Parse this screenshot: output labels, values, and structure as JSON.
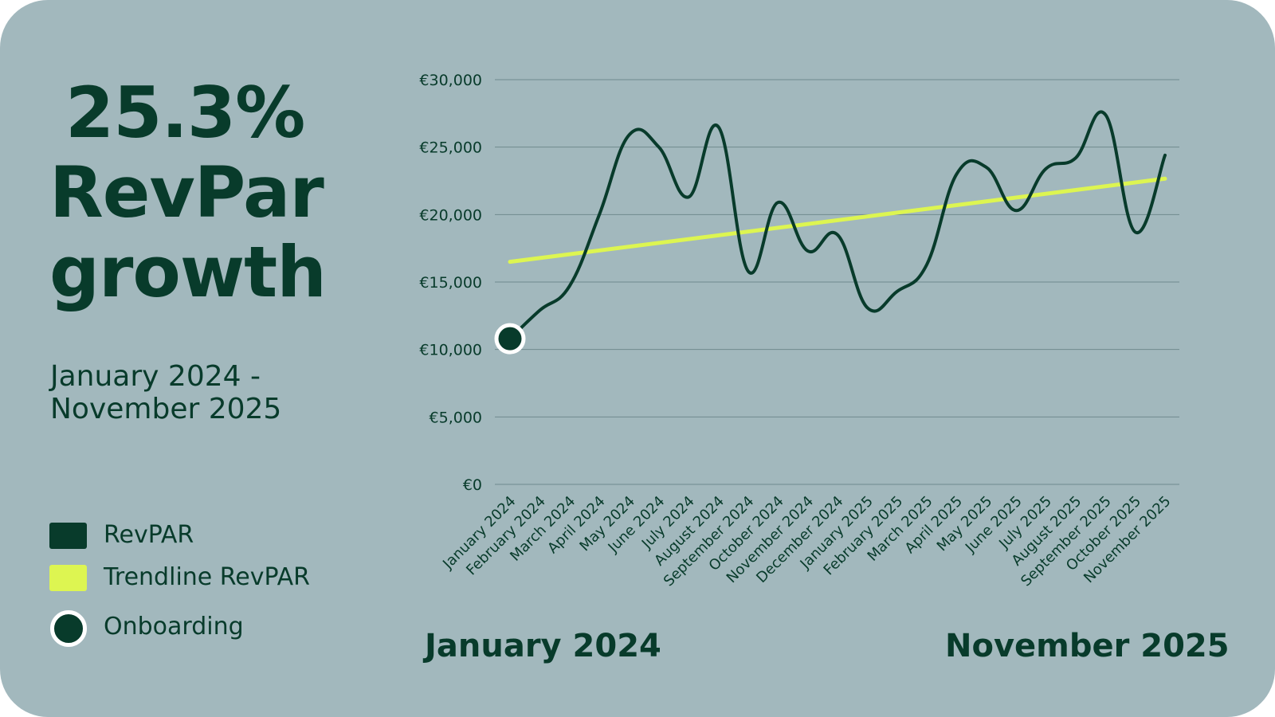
{
  "headline": {
    "percent": "25.3%",
    "line1": "RevPar",
    "line2": "growth"
  },
  "date_range": "January 2024 - November 2025",
  "legend": [
    {
      "label": "RevPAR",
      "color": "#083b2b",
      "shape": "square"
    },
    {
      "label": "Trendline RevPAR",
      "color": "#ddf551",
      "shape": "square"
    },
    {
      "label": "Onboarding",
      "color": "#083b2b",
      "shape": "circle"
    }
  ],
  "footer": {
    "start": "January 2024",
    "end": "November 2025"
  },
  "colors": {
    "background": "#a2b8bd",
    "revpar_line": "#083b2b",
    "trendline": "#ddf551",
    "gridline": "#6f8a8e",
    "marker_border": "#ffffff"
  },
  "chart_data": {
    "type": "line",
    "categories": [
      "January 2024",
      "February 2024",
      "March 2024",
      "April 2024",
      "May 2024",
      "June 2024",
      "July 2024",
      "August 2024",
      "September 2024",
      "October 2024",
      "November 2024",
      "December 2024",
      "January 2025",
      "February 2025",
      "March 2025",
      "April 2025",
      "May 2025",
      "June 2025",
      "July 2025",
      "August 2025",
      "September 2025",
      "October 2025",
      "November 2025"
    ],
    "series": [
      {
        "name": "RevPAR",
        "values": [
          10800,
          12900,
          14700,
          20000,
          25900,
          25000,
          21300,
          26500,
          15800,
          20900,
          17300,
          18500,
          13100,
          14300,
          16300,
          23000,
          23500,
          20300,
          23400,
          24200,
          27400,
          18700,
          24400
        ]
      },
      {
        "name": "Trendline RevPAR",
        "values": [
          16500,
          16780,
          17060,
          17340,
          17620,
          17900,
          18180,
          18460,
          18740,
          19020,
          19300,
          19580,
          19860,
          20140,
          20420,
          20700,
          20980,
          21260,
          21540,
          21820,
          22100,
          22380,
          22660
        ]
      }
    ],
    "onboarding_index": 0,
    "yticks": [
      "€0",
      "€5,000",
      "€10,000",
      "€15,000",
      "€20,000",
      "€25,000",
      "€30,000"
    ],
    "ylim": [
      0,
      30000
    ],
    "grid": true,
    "legend": "left"
  }
}
